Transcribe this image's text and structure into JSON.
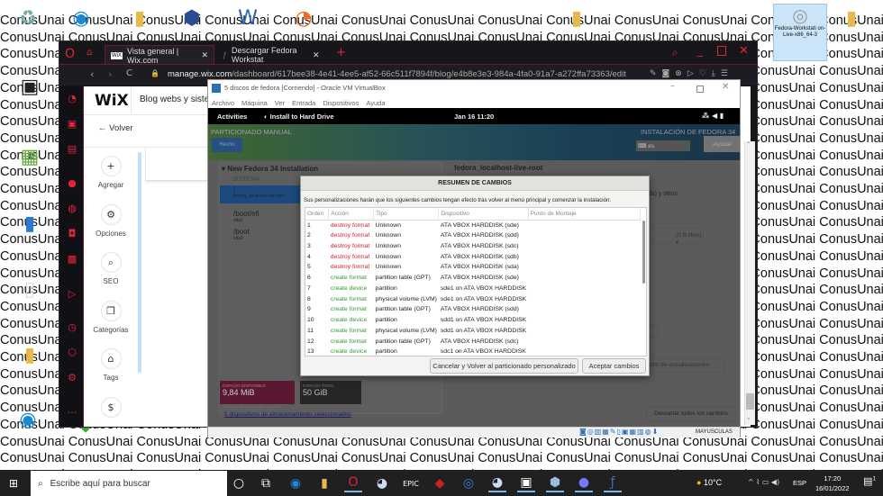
{
  "desktop": {
    "wallpaper_word": "ConusUnai",
    "selected_icon_label": "Fedora-Workstati on-Live-x86_64-3"
  },
  "browser": {
    "tabs": [
      {
        "label": "Vista general | Wix.com",
        "active": true
      },
      {
        "label": "Descargar Fedora Workstat",
        "active": false
      }
    ],
    "new_tab": "+",
    "url_host": "manage.wix.com",
    "url_path": "/dashboard/617bee38-4e41-4ee5-af52-66c511f7894f/blog/e4b8e3e3-984a-4fa0-91a7-a272ffa73363/edit",
    "accent": "#e0243c"
  },
  "wix": {
    "logo": "WiX",
    "site_name": "Blog webs y sister",
    "back": "Volver",
    "tools": [
      {
        "icon": "plus-icon",
        "glyph": "+",
        "label": "Agregar"
      },
      {
        "icon": "gear-icon",
        "glyph": "⚙",
        "label": "Opciones"
      },
      {
        "icon": "search-icon",
        "glyph": "⌕",
        "label": "SEO"
      },
      {
        "icon": "cards-icon",
        "glyph": "❐",
        "label": "Categorías"
      },
      {
        "icon": "tag-icon",
        "glyph": "⌂",
        "label": "Tags"
      },
      {
        "icon": "dollar-icon",
        "glyph": "$",
        "label": ""
      }
    ]
  },
  "vbox": {
    "title": "5 discos de fedora [Corriendo] - Oracle VM VirtualBox",
    "menu": [
      "Archivo",
      "Máquina",
      "Ver",
      "Entrada",
      "Dispositivos",
      "Ayuda"
    ],
    "status_caps": "MAYUSCULAS"
  },
  "fedora": {
    "activities": "Activities",
    "app": "Install to Hard Drive",
    "clock": "Jan 16  11:20",
    "header_left": "PARTICIONADO MANUAL",
    "done": "Hecho",
    "header_right": "INSTALACIÓN DE FEDORA 34",
    "lang": "es",
    "help": "¡Ayuda!",
    "tree_title": "New Fedora 34 Installation",
    "section": "SISTEMA",
    "mounts": [
      {
        "path": "/",
        "dev": "fedora_localhost-live-root",
        "selected": true
      },
      {
        "path": "/boot/efi",
        "dev": "sda1",
        "selected": false
      },
      {
        "path": "/boot",
        "dev": "sda2",
        "selected": false
      }
    ],
    "detail_title": "fedora_localhost-live-root",
    "detail_devices": "(sda) y otros",
    "free_label": "(0 B libre)",
    "update_btn": "uración de actualizaciones",
    "available_label": "ESPACIO DISPONIBLE",
    "available_value": "9,84 MiB",
    "total_label": "ESPACIO TOTAL",
    "total_value": "50 GiB",
    "devices_link": "5 dispositivos de almacenamiento seleccionados",
    "discard": "Descartar todos los cambios"
  },
  "dialog": {
    "title": "RESUMEN DE CAMBIOS",
    "intro": "Sus personalizaciones harán que los siguientes cambios tengan efecto tras volver al menú principal y comenzar la instalación:",
    "columns": [
      "Orden",
      "Acción",
      "Tipo",
      "Dispositivo",
      "Punto de Montaje"
    ],
    "rows": [
      [
        "1",
        "destroy format",
        "Unknown",
        "ATA VBOX HARDDISK (sde)",
        ""
      ],
      [
        "2",
        "destroy format",
        "Unknown",
        "ATA VBOX HARDDISK (sdd)",
        ""
      ],
      [
        "3",
        "destroy format",
        "Unknown",
        "ATA VBOX HARDDISK (sdc)",
        ""
      ],
      [
        "4",
        "destroy format",
        "Unknown",
        "ATA VBOX HARDDISK (sdb)",
        ""
      ],
      [
        "5",
        "destroy format",
        "Unknown",
        "ATA VBOX HARDDISK (sda)",
        ""
      ],
      [
        "6",
        "create format",
        "partition table (GPT)",
        "ATA VBOX HARDDISK (sde)",
        ""
      ],
      [
        "7",
        "create device",
        "partition",
        "sde1 on ATA VBOX HARDDISK",
        ""
      ],
      [
        "8",
        "create format",
        "physical volume (LVM)",
        "sde1 on ATA VBOX HARDDISK",
        ""
      ],
      [
        "9",
        "create format",
        "partition table (GPT)",
        "ATA VBOX HARDDISK (sdd)",
        ""
      ],
      [
        "10",
        "create device",
        "partition",
        "sdd1 on ATA VBOX HARDDISK",
        ""
      ],
      [
        "11",
        "create format",
        "physical volume (LVM)",
        "sdd1 on ATA VBOX HARDDISK",
        ""
      ],
      [
        "12",
        "create format",
        "partition table (GPT)",
        "ATA VBOX HARDDISK (sdc)",
        ""
      ],
      [
        "13",
        "create device",
        "partition",
        "sdc1 on ATA VBOX HARDDISK",
        ""
      ]
    ],
    "cancel": "Cancelar y Volver al particionado personalizado",
    "accept": "Aceptar cambios",
    "destroy_color": "#e0192b",
    "create_color": "#2e9b32"
  },
  "taskbar": {
    "search_placeholder": "Escribe aquí para buscar",
    "weather": "10°C",
    "lang": "ESP",
    "time": "17:20",
    "date": "16/01/2022",
    "notifications": "1"
  }
}
